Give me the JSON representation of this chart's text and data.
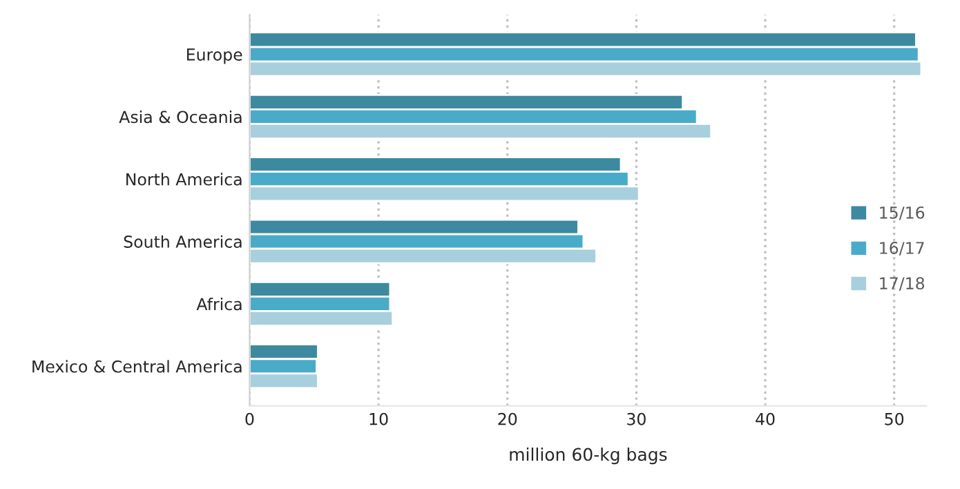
{
  "chart_data": {
    "type": "bar",
    "orientation": "horizontal",
    "xlabel": "million 60-kg bags",
    "categories": [
      "Europe",
      "Asia & Oceania",
      "North America",
      "South America",
      "Africa",
      "Mexico & Central America"
    ],
    "series": [
      {
        "name": "15/16",
        "color": "#3d8aa0",
        "values": [
          51.7,
          33.6,
          28.8,
          25.5,
          10.9,
          5.3
        ]
      },
      {
        "name": "16/17",
        "color": "#4aabc8",
        "values": [
          51.9,
          34.7,
          29.4,
          25.9,
          10.9,
          5.2
        ]
      },
      {
        "name": "17/18",
        "color": "#a8cfdd",
        "values": [
          52.1,
          35.8,
          30.2,
          26.9,
          11.1,
          5.3
        ]
      }
    ],
    "xlim": [
      0,
      52.5
    ],
    "xticks": [
      0,
      10,
      20,
      30,
      40,
      50
    ],
    "grid": "x",
    "legend": "right"
  }
}
